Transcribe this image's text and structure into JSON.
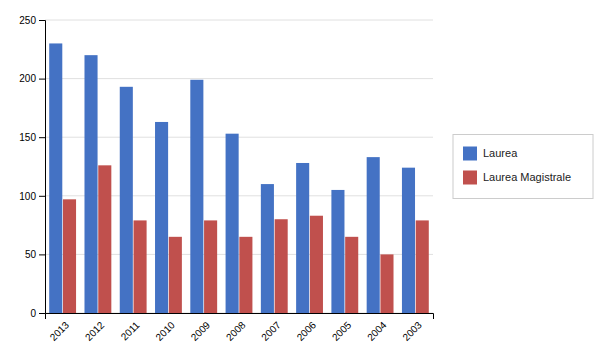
{
  "chart_data": {
    "type": "bar",
    "categories": [
      "2013",
      "2012",
      "2011",
      "2010",
      "2009",
      "2008",
      "2007",
      "2006",
      "2005",
      "2004",
      "2003"
    ],
    "series": [
      {
        "name": "Laurea",
        "color": "#4472C4",
        "values": [
          230,
          220,
          193,
          163,
          199,
          153,
          110,
          128,
          105,
          133,
          124
        ]
      },
      {
        "name": "Laurea Magistrale",
        "color": "#C0504D",
        "values": [
          97,
          126,
          79,
          65,
          79,
          65,
          80,
          83,
          65,
          50,
          79
        ]
      }
    ],
    "ylim": [
      0,
      250
    ],
    "yticks": [
      0,
      50,
      100,
      150,
      200,
      250
    ],
    "grid": true,
    "legend": "right"
  }
}
